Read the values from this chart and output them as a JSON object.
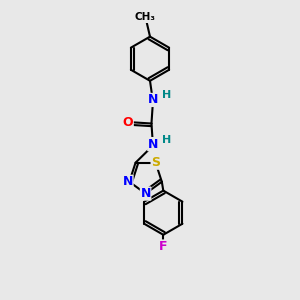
{
  "bg_color": "#e8e8e8",
  "bond_color": "#000000",
  "bond_width": 1.5,
  "atom_colors": {
    "N": "#0000ff",
    "O": "#ff0000",
    "S": "#ccaa00",
    "F": "#cc00cc",
    "C": "#000000",
    "H": "#008888"
  },
  "font_size": 9,
  "figsize": [
    3.0,
    3.0
  ],
  "dpi": 100
}
